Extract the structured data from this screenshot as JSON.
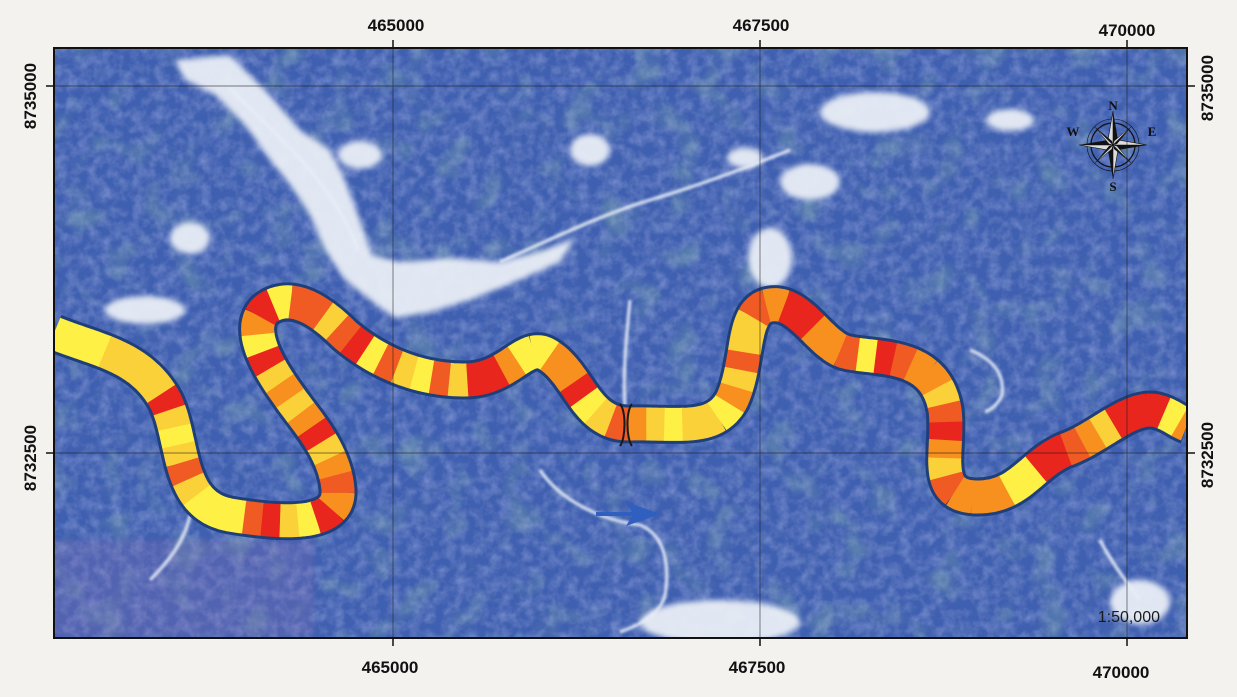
{
  "map": {
    "easting_labels": [
      "465000",
      "467500",
      "470000"
    ],
    "northing_labels": [
      "8735000",
      "8732500"
    ],
    "scale": "1:50,000",
    "compass": {
      "n": "N",
      "s": "S",
      "e": "E",
      "w": "W"
    },
    "river_colors": [
      "#e8261e",
      "#f05a23",
      "#f7901e",
      "#fbd13a",
      "#fff046"
    ],
    "background_colors": [
      "#3f5fb0",
      "#2e4f9e",
      "#5a72b8"
    ],
    "flow_arrow_color": "#2f5fbf"
  }
}
